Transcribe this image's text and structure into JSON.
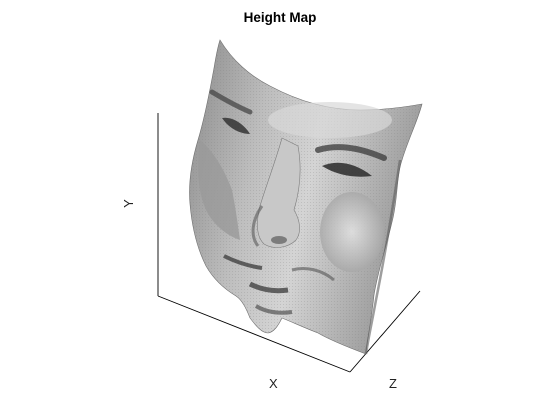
{
  "figure": {
    "title": "Height Map",
    "axes": {
      "x_label": "X",
      "y_label": "Y",
      "z_label": "Z"
    },
    "surface": {
      "subject": "grayscale 3D face surface",
      "colormap": "gray"
    },
    "background_color": "#ffffff",
    "axis_color": "#000000"
  }
}
